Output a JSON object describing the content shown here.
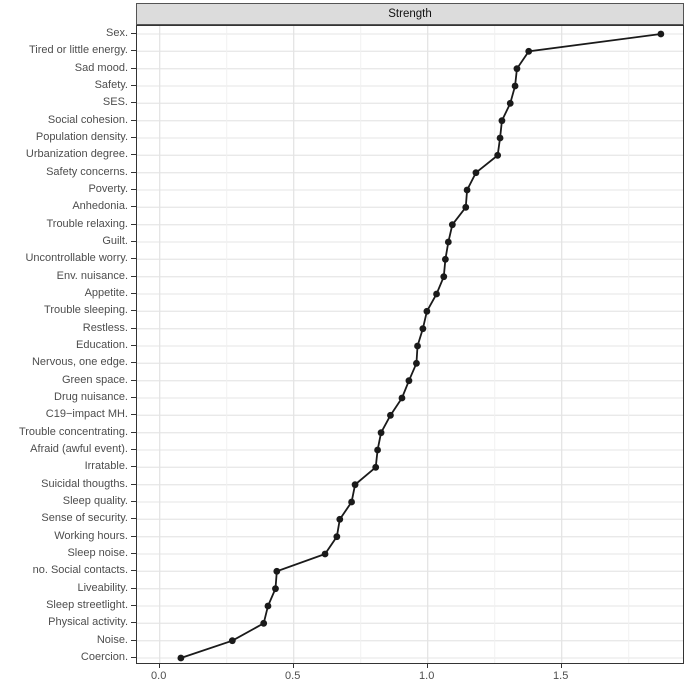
{
  "facet": {
    "title": "Strength"
  },
  "colors": {
    "strip_fill": "#dcdcdc",
    "strip_border": "#545454",
    "panel_border": "#343434",
    "grid_row": "#e9e9e9",
    "grid_major": "#e4e4e4",
    "grid_minor": "#f1f1f1",
    "line": "#1a1a1a",
    "point": "#1a1a1a",
    "axis_text": "#4d4d4d",
    "tick": "#333333"
  },
  "chart_data": {
    "type": "line",
    "orientation": "horizontal",
    "title": "Strength",
    "xlabel": "",
    "ylabel": "",
    "grid": true,
    "legend": false,
    "x_ticks": [
      "0.0",
      "0.5",
      "1.0",
      "1.5"
    ],
    "x_tick_values": [
      0.0,
      0.5,
      1.0,
      1.5
    ],
    "x_minor_ticks": [
      0.25,
      0.75,
      1.25,
      1.75
    ],
    "xlim": [
      -0.085,
      1.96
    ],
    "categories": [
      "Sex.",
      "Tired or little energy.",
      "Sad mood.",
      "Safety.",
      "SES.",
      "Social cohesion.",
      "Population density.",
      "Urbanization degree.",
      "Safety concerns.",
      "Poverty.",
      "Anhedonia.",
      "Trouble relaxing.",
      "Guilt.",
      "Uncontrollable worry.",
      "Env. nuisance.",
      "Appetite.",
      "Trouble sleeping.",
      "Restless.",
      "Education.",
      "Nervous, one edge.",
      "Green space.",
      "Drug nuisance.",
      "C19−impact MH.",
      "Trouble concentrating.",
      "Afraid (awful event).",
      "Irratable.",
      "Suicidal thougths.",
      "Sleep quality.",
      "Sense of security.",
      "Working hours.",
      "Sleep noise.",
      "no. Social contacts.",
      "Liveability.",
      "Sleep streetlight.",
      "Physical activity.",
      "Noise.",
      "Coercion."
    ],
    "values": [
      1.87,
      1.377,
      1.333,
      1.326,
      1.308,
      1.277,
      1.27,
      1.261,
      1.18,
      1.147,
      1.142,
      1.092,
      1.077,
      1.066,
      1.06,
      1.033,
      0.997,
      0.982,
      0.962,
      0.958,
      0.93,
      0.904,
      0.861,
      0.826,
      0.813,
      0.806,
      0.729,
      0.716,
      0.672,
      0.661,
      0.617,
      0.437,
      0.432,
      0.404,
      0.388,
      0.271,
      0.079
    ]
  }
}
